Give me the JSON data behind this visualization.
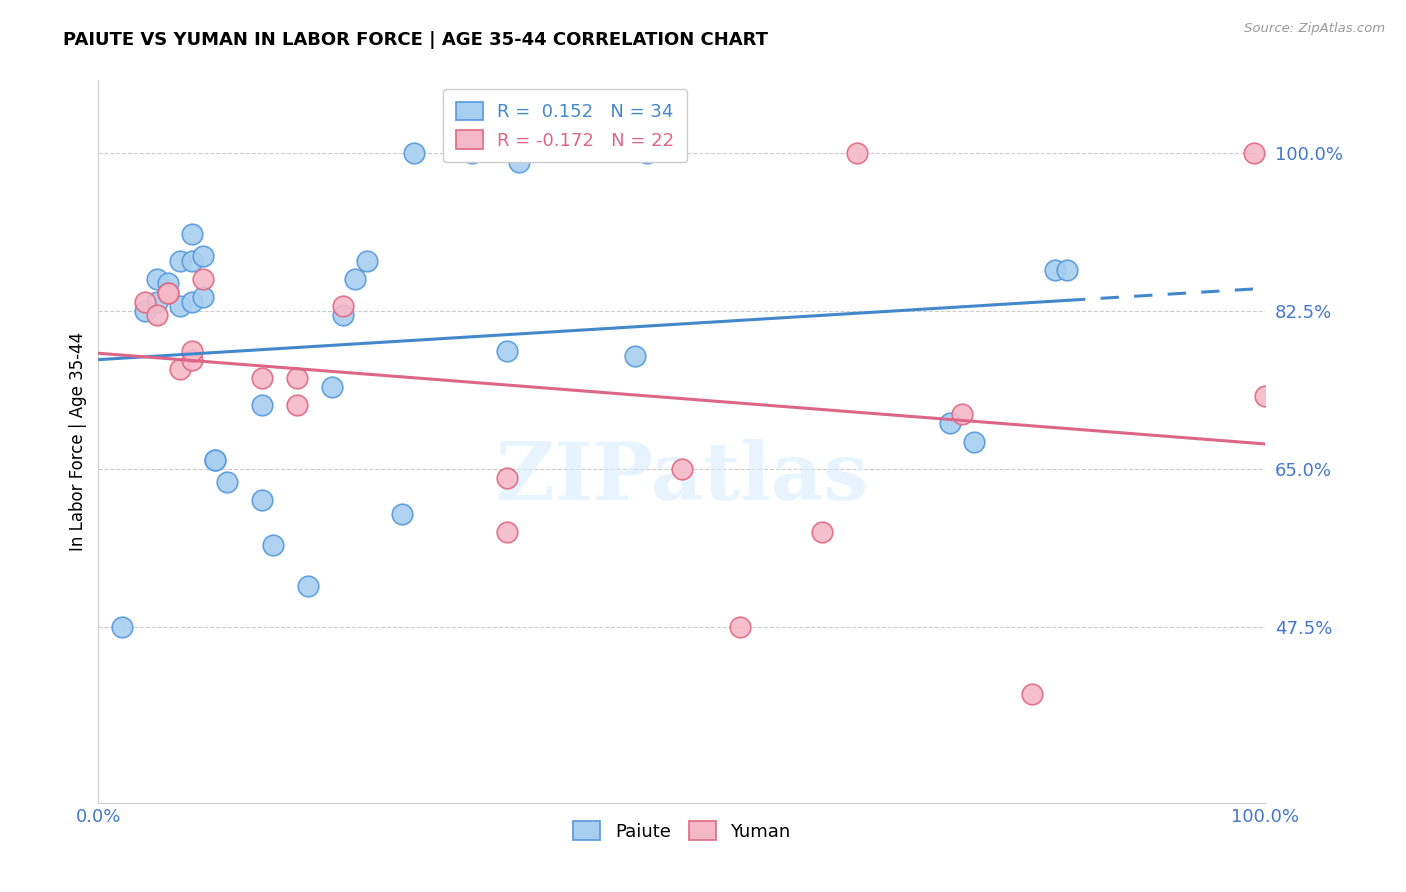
{
  "title": "PAIUTE VS YUMAN IN LABOR FORCE | AGE 35-44 CORRELATION CHART",
  "source": "Source: ZipAtlas.com",
  "ylabel": "In Labor Force | Age 35-44",
  "y_min": 0.28,
  "y_max": 1.08,
  "x_min": 0.0,
  "x_max": 1.0,
  "watermark": "ZIPatlas",
  "legend_blue_R": "0.152",
  "legend_blue_N": "34",
  "legend_pink_R": "-0.172",
  "legend_pink_N": "22",
  "blue_color": "#A8CFF0",
  "pink_color": "#F5B8C8",
  "blue_edge_color": "#5599DD",
  "pink_edge_color": "#E06880",
  "blue_line_color": "#4488CC",
  "pink_line_color": "#DD6688",
  "ytick_color": "#4477CC",
  "ytick_vals": [
    1.0,
    0.825,
    0.65,
    0.475
  ],
  "ytick_labels": [
    "100.0%",
    "82.5%",
    "65.0%",
    "47.5%"
  ],
  "xtick_vals": [
    0.0,
    1.0
  ],
  "xtick_labels": [
    "0.0%",
    "100.0%"
  ],
  "paiute_x": [
    0.02,
    0.04,
    0.05,
    0.05,
    0.06,
    0.07,
    0.07,
    0.08,
    0.08,
    0.08,
    0.09,
    0.09,
    0.1,
    0.1,
    0.11,
    0.14,
    0.14,
    0.15,
    0.18,
    0.2,
    0.21,
    0.22,
    0.23,
    0.26,
    0.27,
    0.32,
    0.35,
    0.36,
    0.46,
    0.47,
    0.73,
    0.75,
    0.82,
    0.83
  ],
  "paiute_y": [
    0.475,
    0.825,
    0.835,
    0.86,
    0.855,
    0.83,
    0.88,
    0.835,
    0.88,
    0.91,
    0.84,
    0.885,
    0.66,
    0.66,
    0.635,
    0.615,
    0.72,
    0.565,
    0.52,
    0.74,
    0.82,
    0.86,
    0.88,
    0.6,
    1.0,
    1.0,
    0.78,
    0.99,
    0.775,
    1.0,
    0.7,
    0.68,
    0.87,
    0.87
  ],
  "yuman_x": [
    0.04,
    0.05,
    0.06,
    0.06,
    0.07,
    0.08,
    0.08,
    0.09,
    0.14,
    0.17,
    0.17,
    0.21,
    0.35,
    0.35,
    0.5,
    0.55,
    0.62,
    0.65,
    0.74,
    0.8,
    0.99,
    1.0
  ],
  "yuman_y": [
    0.835,
    0.82,
    0.845,
    0.845,
    0.76,
    0.77,
    0.78,
    0.86,
    0.75,
    0.75,
    0.72,
    0.83,
    0.64,
    0.58,
    0.65,
    0.475,
    0.58,
    1.0,
    0.71,
    0.4,
    1.0,
    0.73
  ]
}
